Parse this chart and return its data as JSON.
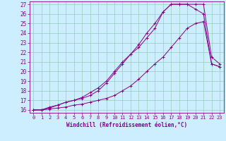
{
  "xlabel": "Windchill (Refroidissement éolien,°C)",
  "bg_color": "#cceeff",
  "line_color": "#880088",
  "grid_color": "#99ccbb",
  "xlim": [
    -0.5,
    23.5
  ],
  "ylim": [
    15.7,
    27.3
  ],
  "xticks": [
    0,
    1,
    2,
    3,
    4,
    5,
    6,
    7,
    8,
    9,
    10,
    11,
    12,
    13,
    14,
    15,
    16,
    17,
    18,
    19,
    20,
    21,
    22,
    23
  ],
  "yticks": [
    16,
    17,
    18,
    19,
    20,
    21,
    22,
    23,
    24,
    25,
    26,
    27
  ],
  "line1_x": [
    0,
    1,
    2,
    3,
    4,
    5,
    6,
    7,
    8,
    9,
    10,
    11,
    12,
    13,
    14,
    15,
    16,
    17,
    18,
    19,
    20,
    21,
    22,
    23
  ],
  "line1_y": [
    16.0,
    16.0,
    16.1,
    16.2,
    16.3,
    16.5,
    16.6,
    16.8,
    17.0,
    17.2,
    17.5,
    18.0,
    18.5,
    19.2,
    20.0,
    20.8,
    21.5,
    22.5,
    23.5,
    24.5,
    25.0,
    25.2,
    20.8,
    20.5
  ],
  "line2_x": [
    0,
    1,
    2,
    3,
    4,
    5,
    6,
    7,
    8,
    9,
    10,
    11,
    12,
    13,
    14,
    15,
    16,
    17,
    18,
    19,
    20,
    21,
    22,
    23
  ],
  "line2_y": [
    16.0,
    16.0,
    16.3,
    16.5,
    16.8,
    17.0,
    17.3,
    17.8,
    18.3,
    19.0,
    20.0,
    21.0,
    21.8,
    22.5,
    23.5,
    24.5,
    26.2,
    27.0,
    27.0,
    27.0,
    27.0,
    27.0,
    21.5,
    20.8
  ],
  "line3_x": [
    0,
    1,
    2,
    3,
    4,
    5,
    6,
    7,
    8,
    9,
    10,
    11,
    12,
    13,
    14,
    15,
    16,
    17,
    18,
    19,
    20,
    21,
    22,
    23
  ],
  "line3_y": [
    16.0,
    16.0,
    16.2,
    16.5,
    16.8,
    17.0,
    17.2,
    17.5,
    18.0,
    18.8,
    19.8,
    20.8,
    21.8,
    22.8,
    24.0,
    25.0,
    26.2,
    27.0,
    27.0,
    27.0,
    26.5,
    26.0,
    20.8,
    20.5
  ]
}
